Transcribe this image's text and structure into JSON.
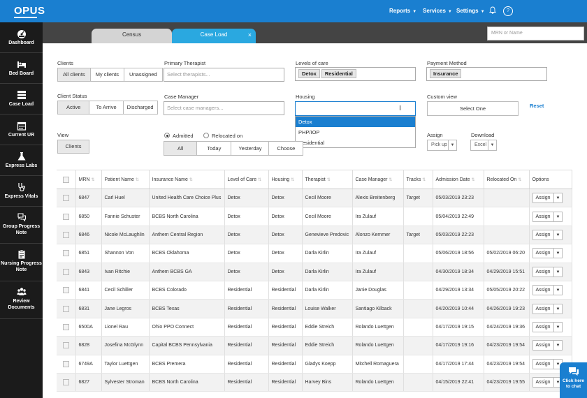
{
  "app": {
    "logo": "OPUS"
  },
  "topnav": {
    "reports": "Reports",
    "services": "Services",
    "settings": "Settings",
    "bell_icon": "bell-icon",
    "help_icon": "question-circle-icon",
    "help_glyph": "?"
  },
  "sidebar": {
    "items": [
      {
        "label": "Dashboard",
        "icon": "dashboard-gauge-icon"
      },
      {
        "label": "Bed Board",
        "icon": "bed-icon"
      },
      {
        "label": "Case Load",
        "icon": "case-load-list-icon"
      },
      {
        "label": "Current UR",
        "icon": "calendar-icon"
      },
      {
        "label": "Express Labs",
        "icon": "flask-icon"
      },
      {
        "label": "Express Vitals",
        "icon": "stethoscope-icon"
      },
      {
        "label": "Group Progress Note",
        "icon": "chat-bubbles-icon"
      },
      {
        "label": "Nursing Progress Note",
        "icon": "clipboard-icon"
      },
      {
        "label": "Review Documents",
        "icon": "users-icon"
      }
    ]
  },
  "tabs": [
    {
      "label": "Census"
    },
    {
      "label": "Case Load",
      "close": "×"
    }
  ],
  "search": {
    "placeholder": "MRN or Name"
  },
  "filters": {
    "clients": {
      "label": "Clients",
      "options": [
        "All clients",
        "My clients",
        "Unassigned"
      ],
      "selected": "All clients"
    },
    "primary_therapist": {
      "label": "Primary Therapist",
      "placeholder": "Select therapists..."
    },
    "levels_of_care": {
      "label": "Levels of care",
      "chips": [
        "Detox",
        "Residential"
      ]
    },
    "payment_method": {
      "label": "Payment Method",
      "chips": [
        "Insurance"
      ]
    },
    "client_status": {
      "label": "Client Status",
      "options": [
        "Active",
        "To Arrive",
        "Discharged"
      ],
      "selected": "Active"
    },
    "case_manager": {
      "label": "Case Manager",
      "placeholder": "Select case managers..."
    },
    "housing": {
      "label": "Housing",
      "options": [
        "Detox",
        "PHP/IOP",
        "Residential"
      ],
      "highlighted": "Detox"
    },
    "custom_view": {
      "label": "Custom view",
      "button": "Select One"
    },
    "reset": "Reset",
    "view": {
      "label": "View",
      "button": "Clients"
    },
    "date_mode": {
      "admitted": "Admitted",
      "relocated": "Relocated on",
      "selected": "Admitted"
    },
    "date_range": {
      "options": [
        "All",
        "Today",
        "Yesterday",
        "Choose"
      ],
      "selected": "All"
    },
    "assign": {
      "label": "Assign",
      "value": "Pick up"
    },
    "download": {
      "label": "Download",
      "value": "Excel"
    }
  },
  "table": {
    "columns": [
      "MRN",
      "Patient Name",
      "Insurance Name",
      "Level of Care",
      "Housing",
      "Therapist",
      "Case Manager",
      "Tracks",
      "Admission Date",
      "Relocated On",
      "Options"
    ],
    "assign_label": "Assign",
    "rows": [
      {
        "mrn": "6847",
        "name": "Carl Huel",
        "insurance": "United Health Care Choice Plus",
        "level": "Detox",
        "housing": "Detox",
        "therapist": "Cecil Moore",
        "case_manager": "Alexis Breitenberg",
        "tracks": "Target",
        "admission": "05/03/2019 23:23",
        "relocated": ""
      },
      {
        "mrn": "6850",
        "name": "Fannie Schuster",
        "insurance": "BCBS North Carolina",
        "level": "Detox",
        "housing": "Detox",
        "therapist": "Cecil Moore",
        "case_manager": "Ira Zulauf",
        "tracks": "",
        "admission": "05/04/2019 22:49",
        "relocated": ""
      },
      {
        "mrn": "6846",
        "name": "Nicole McLaughlin",
        "insurance": "Anthem Central Region",
        "level": "Detox",
        "housing": "Detox",
        "therapist": "Genevieve Predovic",
        "case_manager": "Alonzo Kemmer",
        "tracks": "Target",
        "admission": "05/03/2019 22:23",
        "relocated": ""
      },
      {
        "mrn": "6851",
        "name": "Shannon Von",
        "insurance": "BCBS Oklahoma",
        "level": "Detox",
        "housing": "Detox",
        "therapist": "Darla Kirlin",
        "case_manager": "Ira Zulauf",
        "tracks": "",
        "admission": "05/06/2019 18:56",
        "relocated": "05/02/2019 06:20"
      },
      {
        "mrn": "6843",
        "name": "Ivan Ritchie",
        "insurance": "Anthem BCBS GA",
        "level": "Detox",
        "housing": "Detox",
        "therapist": "Darla Kirlin",
        "case_manager": "Ira Zulauf",
        "tracks": "",
        "admission": "04/30/2019 18:34",
        "relocated": "04/29/2019 15:51"
      },
      {
        "mrn": "6841",
        "name": "Cecil Schiller",
        "insurance": "BCBS Colorado",
        "level": "Residential",
        "housing": "Residential",
        "therapist": "Darla Kirlin",
        "case_manager": "Janie Douglas",
        "tracks": "",
        "admission": "04/29/2019 13:34",
        "relocated": "05/05/2019 20:22"
      },
      {
        "mrn": "6831",
        "name": "Jane Legros",
        "insurance": "BCBS Texas",
        "level": "Residential",
        "housing": "Residential",
        "therapist": "Louise Walker",
        "case_manager": "Santiago Kilback",
        "tracks": "",
        "admission": "04/20/2019 10:44",
        "relocated": "04/26/2019 19:23"
      },
      {
        "mrn": "6500A",
        "name": "Lionel Rau",
        "insurance": "Ohio PPO Connect",
        "level": "Residential",
        "housing": "Residential",
        "therapist": "Eddie Streich",
        "case_manager": "Rolando Luettgen",
        "tracks": "",
        "admission": "04/17/2019 19:15",
        "relocated": "04/24/2019 19:36"
      },
      {
        "mrn": "6828",
        "name": "Josefina McGlynn",
        "insurance": "Capital BCBS Pennsylvania",
        "level": "Residential",
        "housing": "Residential",
        "therapist": "Eddie Streich",
        "case_manager": "Rolando Luettgen",
        "tracks": "",
        "admission": "04/17/2019 19:16",
        "relocated": "04/23/2019 19:54"
      },
      {
        "mrn": "6749A",
        "name": "Taylor Luettgen",
        "insurance": "BCBS Premera",
        "level": "Residential",
        "housing": "Residential",
        "therapist": "Gladys Koepp",
        "case_manager": "Mitchell Romaguera",
        "tracks": "",
        "admission": "04/17/2019 17:44",
        "relocated": "04/23/2019 19:54"
      },
      {
        "mrn": "6827",
        "name": "Sylvester Stroman",
        "insurance": "BCBS North Carolina",
        "level": "Residential",
        "housing": "Residential",
        "therapist": "Harvey Bins",
        "case_manager": "Rolando Luettgen",
        "tracks": "",
        "admission": "04/15/2019 22:41",
        "relocated": "04/23/2019 19:55"
      }
    ]
  },
  "chat": {
    "label_line1": "Click here",
    "label_line2": "to chat",
    "icon": "chat-bubble-icon"
  },
  "colors": {
    "primary": "#1a7fd0",
    "tab_active": "#2aa8e0",
    "sidebar": "#1b1b1b",
    "tabsbar": "#444444"
  }
}
